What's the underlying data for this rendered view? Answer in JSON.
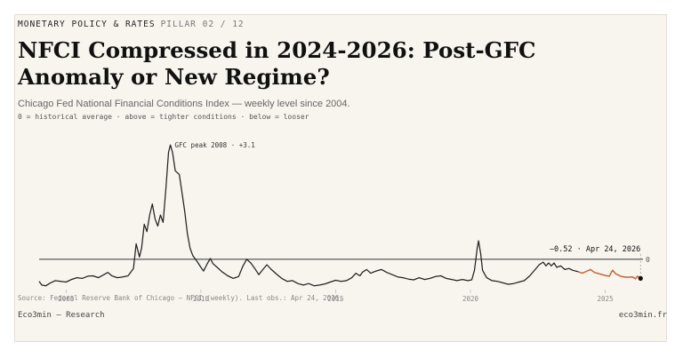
{
  "kicker": {
    "section": "MONETARY POLICY & RATES",
    "pillar": "PILLAR 02 / 12"
  },
  "title": "NFCI Compressed in 2024-2026: Post-GFC Anomaly or New Regime?",
  "subtitle": "Chicago Fed National Financial Conditions Index — weekly level since 2004.",
  "legend": "0 = historical average  ·  above = tighter conditions  ·  below = looser",
  "source": "Source: Federal Reserve Bank of Chicago — NFCI (weekly). Last obs.: Apr 24, 2026.",
  "brand": "Eco3min — Research",
  "site": "eco3min.fr",
  "colors": {
    "line": "#222222",
    "recent": "#c8643a",
    "baseline": "#333333",
    "dot": "#111111"
  },
  "chart_data": {
    "type": "line",
    "x_unit": "year",
    "xlim": [
      2004.0,
      2026.4
    ],
    "ylim": [
      -0.8,
      3.25
    ],
    "xticks": [
      2005,
      2010,
      2015,
      2020,
      2025
    ],
    "zero_label": "0",
    "baseline": 0,
    "annotations": {
      "peak": {
        "label": "GFC peak 2008 · +3.1",
        "x": 2008.8,
        "y": 3.1
      },
      "last": {
        "label": "−0.52 · Apr 24, 2026",
        "x": 2026.31,
        "y": -0.52
      }
    },
    "highlight_from": 2024.0,
    "series": [
      {
        "values": [
          [
            2004.0,
            -0.6
          ],
          [
            2004.1,
            -0.7
          ],
          [
            2004.25,
            -0.72
          ],
          [
            2004.4,
            -0.65
          ],
          [
            2004.6,
            -0.58
          ],
          [
            2004.8,
            -0.6
          ],
          [
            2005.0,
            -0.62
          ],
          [
            2005.2,
            -0.55
          ],
          [
            2005.4,
            -0.5
          ],
          [
            2005.6,
            -0.52
          ],
          [
            2005.8,
            -0.46
          ],
          [
            2006.0,
            -0.45
          ],
          [
            2006.2,
            -0.5
          ],
          [
            2006.4,
            -0.42
          ],
          [
            2006.55,
            -0.36
          ],
          [
            2006.7,
            -0.45
          ],
          [
            2006.9,
            -0.5
          ],
          [
            2007.1,
            -0.48
          ],
          [
            2007.3,
            -0.45
          ],
          [
            2007.5,
            -0.25
          ],
          [
            2007.6,
            0.42
          ],
          [
            2007.72,
            0.06
          ],
          [
            2007.8,
            0.3
          ],
          [
            2007.9,
            0.95
          ],
          [
            2008.0,
            0.75
          ],
          [
            2008.1,
            1.2
          ],
          [
            2008.2,
            1.5
          ],
          [
            2008.3,
            1.1
          ],
          [
            2008.4,
            0.9
          ],
          [
            2008.5,
            1.2
          ],
          [
            2008.6,
            1.0
          ],
          [
            2008.7,
            1.9
          ],
          [
            2008.8,
            2.9
          ],
          [
            2008.87,
            3.1
          ],
          [
            2008.95,
            2.9
          ],
          [
            2009.05,
            2.4
          ],
          [
            2009.2,
            2.3
          ],
          [
            2009.3,
            1.8
          ],
          [
            2009.4,
            1.3
          ],
          [
            2009.5,
            0.7
          ],
          [
            2009.6,
            0.3
          ],
          [
            2009.7,
            0.1
          ],
          [
            2009.85,
            -0.05
          ],
          [
            2010.0,
            -0.22
          ],
          [
            2010.1,
            -0.32
          ],
          [
            2010.25,
            -0.1
          ],
          [
            2010.35,
            0.02
          ],
          [
            2010.45,
            -0.12
          ],
          [
            2010.6,
            -0.22
          ],
          [
            2010.8,
            -0.35
          ],
          [
            2011.0,
            -0.45
          ],
          [
            2011.2,
            -0.52
          ],
          [
            2011.4,
            -0.47
          ],
          [
            2011.55,
            -0.2
          ],
          [
            2011.7,
            0.0
          ],
          [
            2011.85,
            -0.1
          ],
          [
            2012.0,
            -0.25
          ],
          [
            2012.15,
            -0.42
          ],
          [
            2012.3,
            -0.28
          ],
          [
            2012.45,
            -0.15
          ],
          [
            2012.6,
            -0.27
          ],
          [
            2012.8,
            -0.4
          ],
          [
            2013.0,
            -0.52
          ],
          [
            2013.2,
            -0.6
          ],
          [
            2013.4,
            -0.58
          ],
          [
            2013.6,
            -0.66
          ],
          [
            2013.8,
            -0.7
          ],
          [
            2014.0,
            -0.66
          ],
          [
            2014.2,
            -0.72
          ],
          [
            2014.4,
            -0.7
          ],
          [
            2014.6,
            -0.67
          ],
          [
            2014.8,
            -0.62
          ],
          [
            2015.0,
            -0.57
          ],
          [
            2015.2,
            -0.6
          ],
          [
            2015.4,
            -0.58
          ],
          [
            2015.6,
            -0.5
          ],
          [
            2015.75,
            -0.38
          ],
          [
            2015.9,
            -0.45
          ],
          [
            2016.0,
            -0.35
          ],
          [
            2016.15,
            -0.28
          ],
          [
            2016.3,
            -0.38
          ],
          [
            2016.5,
            -0.32
          ],
          [
            2016.7,
            -0.28
          ],
          [
            2016.9,
            -0.36
          ],
          [
            2017.1,
            -0.42
          ],
          [
            2017.3,
            -0.48
          ],
          [
            2017.5,
            -0.5
          ],
          [
            2017.7,
            -0.54
          ],
          [
            2017.9,
            -0.56
          ],
          [
            2018.1,
            -0.5
          ],
          [
            2018.3,
            -0.55
          ],
          [
            2018.5,
            -0.52
          ],
          [
            2018.7,
            -0.47
          ],
          [
            2018.9,
            -0.45
          ],
          [
            2019.1,
            -0.52
          ],
          [
            2019.3,
            -0.55
          ],
          [
            2019.5,
            -0.58
          ],
          [
            2019.7,
            -0.55
          ],
          [
            2019.9,
            -0.58
          ],
          [
            2020.05,
            -0.56
          ],
          [
            2020.15,
            -0.3
          ],
          [
            2020.25,
            0.3
          ],
          [
            2020.3,
            0.5
          ],
          [
            2020.38,
            0.15
          ],
          [
            2020.45,
            -0.3
          ],
          [
            2020.6,
            -0.5
          ],
          [
            2020.8,
            -0.58
          ],
          [
            2021.0,
            -0.6
          ],
          [
            2021.2,
            -0.64
          ],
          [
            2021.4,
            -0.68
          ],
          [
            2021.6,
            -0.66
          ],
          [
            2021.8,
            -0.62
          ],
          [
            2022.0,
            -0.58
          ],
          [
            2022.2,
            -0.45
          ],
          [
            2022.4,
            -0.28
          ],
          [
            2022.55,
            -0.15
          ],
          [
            2022.7,
            -0.08
          ],
          [
            2022.8,
            -0.18
          ],
          [
            2022.9,
            -0.1
          ],
          [
            2023.0,
            -0.18
          ],
          [
            2023.1,
            -0.1
          ],
          [
            2023.2,
            -0.22
          ],
          [
            2023.35,
            -0.18
          ],
          [
            2023.5,
            -0.28
          ],
          [
            2023.65,
            -0.25
          ],
          [
            2023.8,
            -0.3
          ],
          [
            2024.0,
            -0.34
          ],
          [
            2024.15,
            -0.38
          ],
          [
            2024.3,
            -0.33
          ],
          [
            2024.45,
            -0.28
          ],
          [
            2024.6,
            -0.36
          ],
          [
            2024.8,
            -0.4
          ],
          [
            2025.0,
            -0.44
          ],
          [
            2025.15,
            -0.46
          ],
          [
            2025.27,
            -0.3
          ],
          [
            2025.4,
            -0.4
          ],
          [
            2025.6,
            -0.47
          ],
          [
            2025.8,
            -0.49
          ],
          [
            2026.0,
            -0.48
          ],
          [
            2026.12,
            -0.53
          ],
          [
            2026.2,
            -0.46
          ],
          [
            2026.31,
            -0.52
          ]
        ]
      }
    ]
  }
}
